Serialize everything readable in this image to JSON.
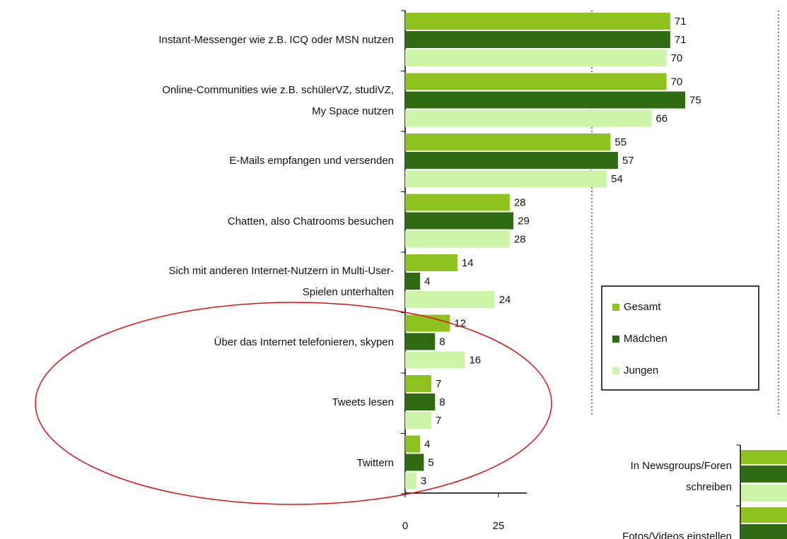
{
  "chart_data": {
    "type": "barh",
    "categories": [
      "Instant-Messenger wie z.B. ICQ oder MSN nutzen",
      "Online-Communities wie z.B. schülerVZ, studiVZ,\nMy Space nutzen",
      "E-Mails empfangen und versenden",
      "Chatten, also Chatrooms besuchen",
      "Sich mit anderen Internet-Nutzern in Multi-User-\nSpielen unterhalten",
      "Über das Internet telefonieren, skypen",
      "Tweets lesen",
      "Twittern"
    ],
    "series": [
      {
        "name": "Gesamt",
        "color": "#8dc21f",
        "values": [
          71,
          70,
          55,
          28,
          14,
          12,
          7,
          4
        ]
      },
      {
        "name": "Mädchen",
        "color": "#2e6b12",
        "values": [
          71,
          75,
          57,
          29,
          4,
          8,
          8,
          5
        ]
      },
      {
        "name": "Jungen",
        "color": "#ccf5a8",
        "values": [
          70,
          66,
          54,
          28,
          24,
          16,
          7,
          3
        ]
      }
    ],
    "xlim": [
      0,
      100
    ],
    "xticks": [
      0,
      25,
      50,
      75,
      100
    ],
    "grid": true,
    "legend": "right",
    "inset_categories": [
      "In Newsgroups/Foren\nschreiben",
      "Fotos/Videos einstellen"
    ]
  }
}
